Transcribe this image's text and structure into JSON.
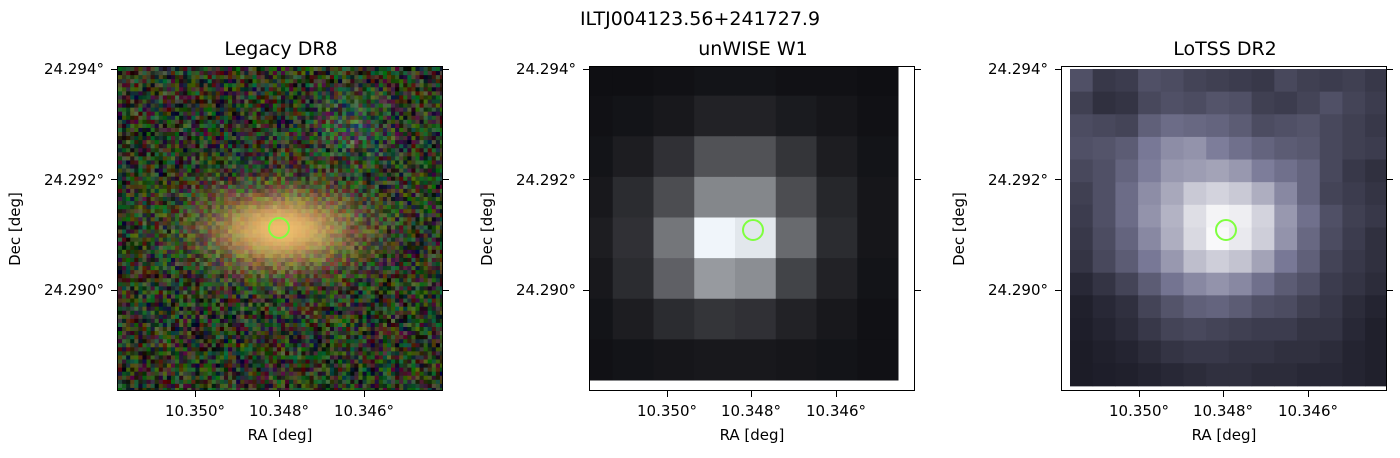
{
  "suptitle": "ILTJ004123.56+241727.9",
  "panels": [
    {
      "title": "Legacy DR8",
      "ylabel": "Dec [deg]",
      "xlabel": "RA [deg]",
      "yticks": [
        "24.294°",
        "24.292°",
        "24.290°"
      ],
      "xticks": [
        "10.350°",
        "10.348°",
        "10.346°"
      ]
    },
    {
      "title": "unWISE W1",
      "ylabel": "Dec [deg]",
      "xlabel": "RA [deg]",
      "yticks": [
        "24.294°",
        "24.292°",
        "24.290°"
      ],
      "xticks": [
        "10.350°",
        "10.348°",
        "10.346°"
      ]
    },
    {
      "title": "LoTSS DR2",
      "ylabel": "Dec [deg]",
      "xlabel": "RA [deg]",
      "yticks": [
        "24.294°",
        "24.292°",
        "24.290°"
      ],
      "xticks": [
        "10.350°",
        "10.348°",
        "10.346°"
      ]
    }
  ],
  "marker_color": "#7fff3f",
  "unwise_grid": [
    [
      0.02,
      0.02,
      0.03,
      0.04,
      0.04,
      0.03,
      0.03,
      0.02
    ],
    [
      0.03,
      0.04,
      0.06,
      0.1,
      0.1,
      0.07,
      0.05,
      0.03
    ],
    [
      0.04,
      0.08,
      0.16,
      0.3,
      0.3,
      0.18,
      0.08,
      0.04
    ],
    [
      0.06,
      0.14,
      0.28,
      0.52,
      0.52,
      0.28,
      0.12,
      0.05
    ],
    [
      0.08,
      0.16,
      0.45,
      0.98,
      0.92,
      0.4,
      0.14,
      0.05
    ],
    [
      0.06,
      0.14,
      0.36,
      0.6,
      0.55,
      0.24,
      0.1,
      0.04
    ],
    [
      0.04,
      0.08,
      0.14,
      0.18,
      0.16,
      0.1,
      0.06,
      0.03
    ],
    [
      0.03,
      0.04,
      0.05,
      0.06,
      0.06,
      0.05,
      0.04,
      0.03
    ]
  ],
  "lotss_grid": [
    [
      0.3,
      0.18,
      0.2,
      0.3,
      0.28,
      0.24,
      0.22,
      0.2,
      0.18,
      0.26,
      0.22,
      0.2,
      0.22,
      0.18
    ],
    [
      0.22,
      0.14,
      0.16,
      0.26,
      0.3,
      0.28,
      0.32,
      0.3,
      0.22,
      0.2,
      0.24,
      0.3,
      0.24,
      0.2
    ],
    [
      0.28,
      0.26,
      0.24,
      0.38,
      0.44,
      0.42,
      0.4,
      0.36,
      0.28,
      0.3,
      0.32,
      0.26,
      0.22,
      0.18
    ],
    [
      0.3,
      0.32,
      0.36,
      0.5,
      0.58,
      0.6,
      0.52,
      0.46,
      0.4,
      0.36,
      0.34,
      0.26,
      0.22,
      0.2
    ],
    [
      0.26,
      0.3,
      0.4,
      0.52,
      0.62,
      0.64,
      0.66,
      0.62,
      0.52,
      0.46,
      0.4,
      0.26,
      0.18,
      0.14
    ],
    [
      0.22,
      0.3,
      0.44,
      0.58,
      0.68,
      0.8,
      0.84,
      0.8,
      0.7,
      0.56,
      0.4,
      0.24,
      0.2,
      0.16
    ],
    [
      0.2,
      0.3,
      0.44,
      0.6,
      0.72,
      0.88,
      0.96,
      0.94,
      0.84,
      0.62,
      0.46,
      0.3,
      0.22,
      0.18
    ],
    [
      0.18,
      0.28,
      0.4,
      0.56,
      0.7,
      0.86,
      0.98,
      0.92,
      0.82,
      0.6,
      0.42,
      0.28,
      0.2,
      0.14
    ],
    [
      0.16,
      0.26,
      0.36,
      0.5,
      0.62,
      0.76,
      0.82,
      0.78,
      0.66,
      0.5,
      0.38,
      0.24,
      0.18,
      0.14
    ],
    [
      0.1,
      0.16,
      0.24,
      0.36,
      0.48,
      0.56,
      0.6,
      0.56,
      0.46,
      0.36,
      0.3,
      0.2,
      0.16,
      0.12
    ],
    [
      0.06,
      0.1,
      0.14,
      0.24,
      0.32,
      0.38,
      0.4,
      0.36,
      0.3,
      0.28,
      0.22,
      0.18,
      0.12,
      0.08
    ],
    [
      0.05,
      0.08,
      0.12,
      0.18,
      0.24,
      0.26,
      0.24,
      0.22,
      0.2,
      0.2,
      0.16,
      0.16,
      0.1,
      0.06
    ],
    [
      0.04,
      0.06,
      0.08,
      0.12,
      0.16,
      0.18,
      0.18,
      0.16,
      0.16,
      0.14,
      0.14,
      0.12,
      0.08,
      0.06
    ],
    [
      0.04,
      0.05,
      0.06,
      0.08,
      0.1,
      0.12,
      0.14,
      0.14,
      0.12,
      0.12,
      0.1,
      0.1,
      0.08,
      0.06
    ]
  ]
}
